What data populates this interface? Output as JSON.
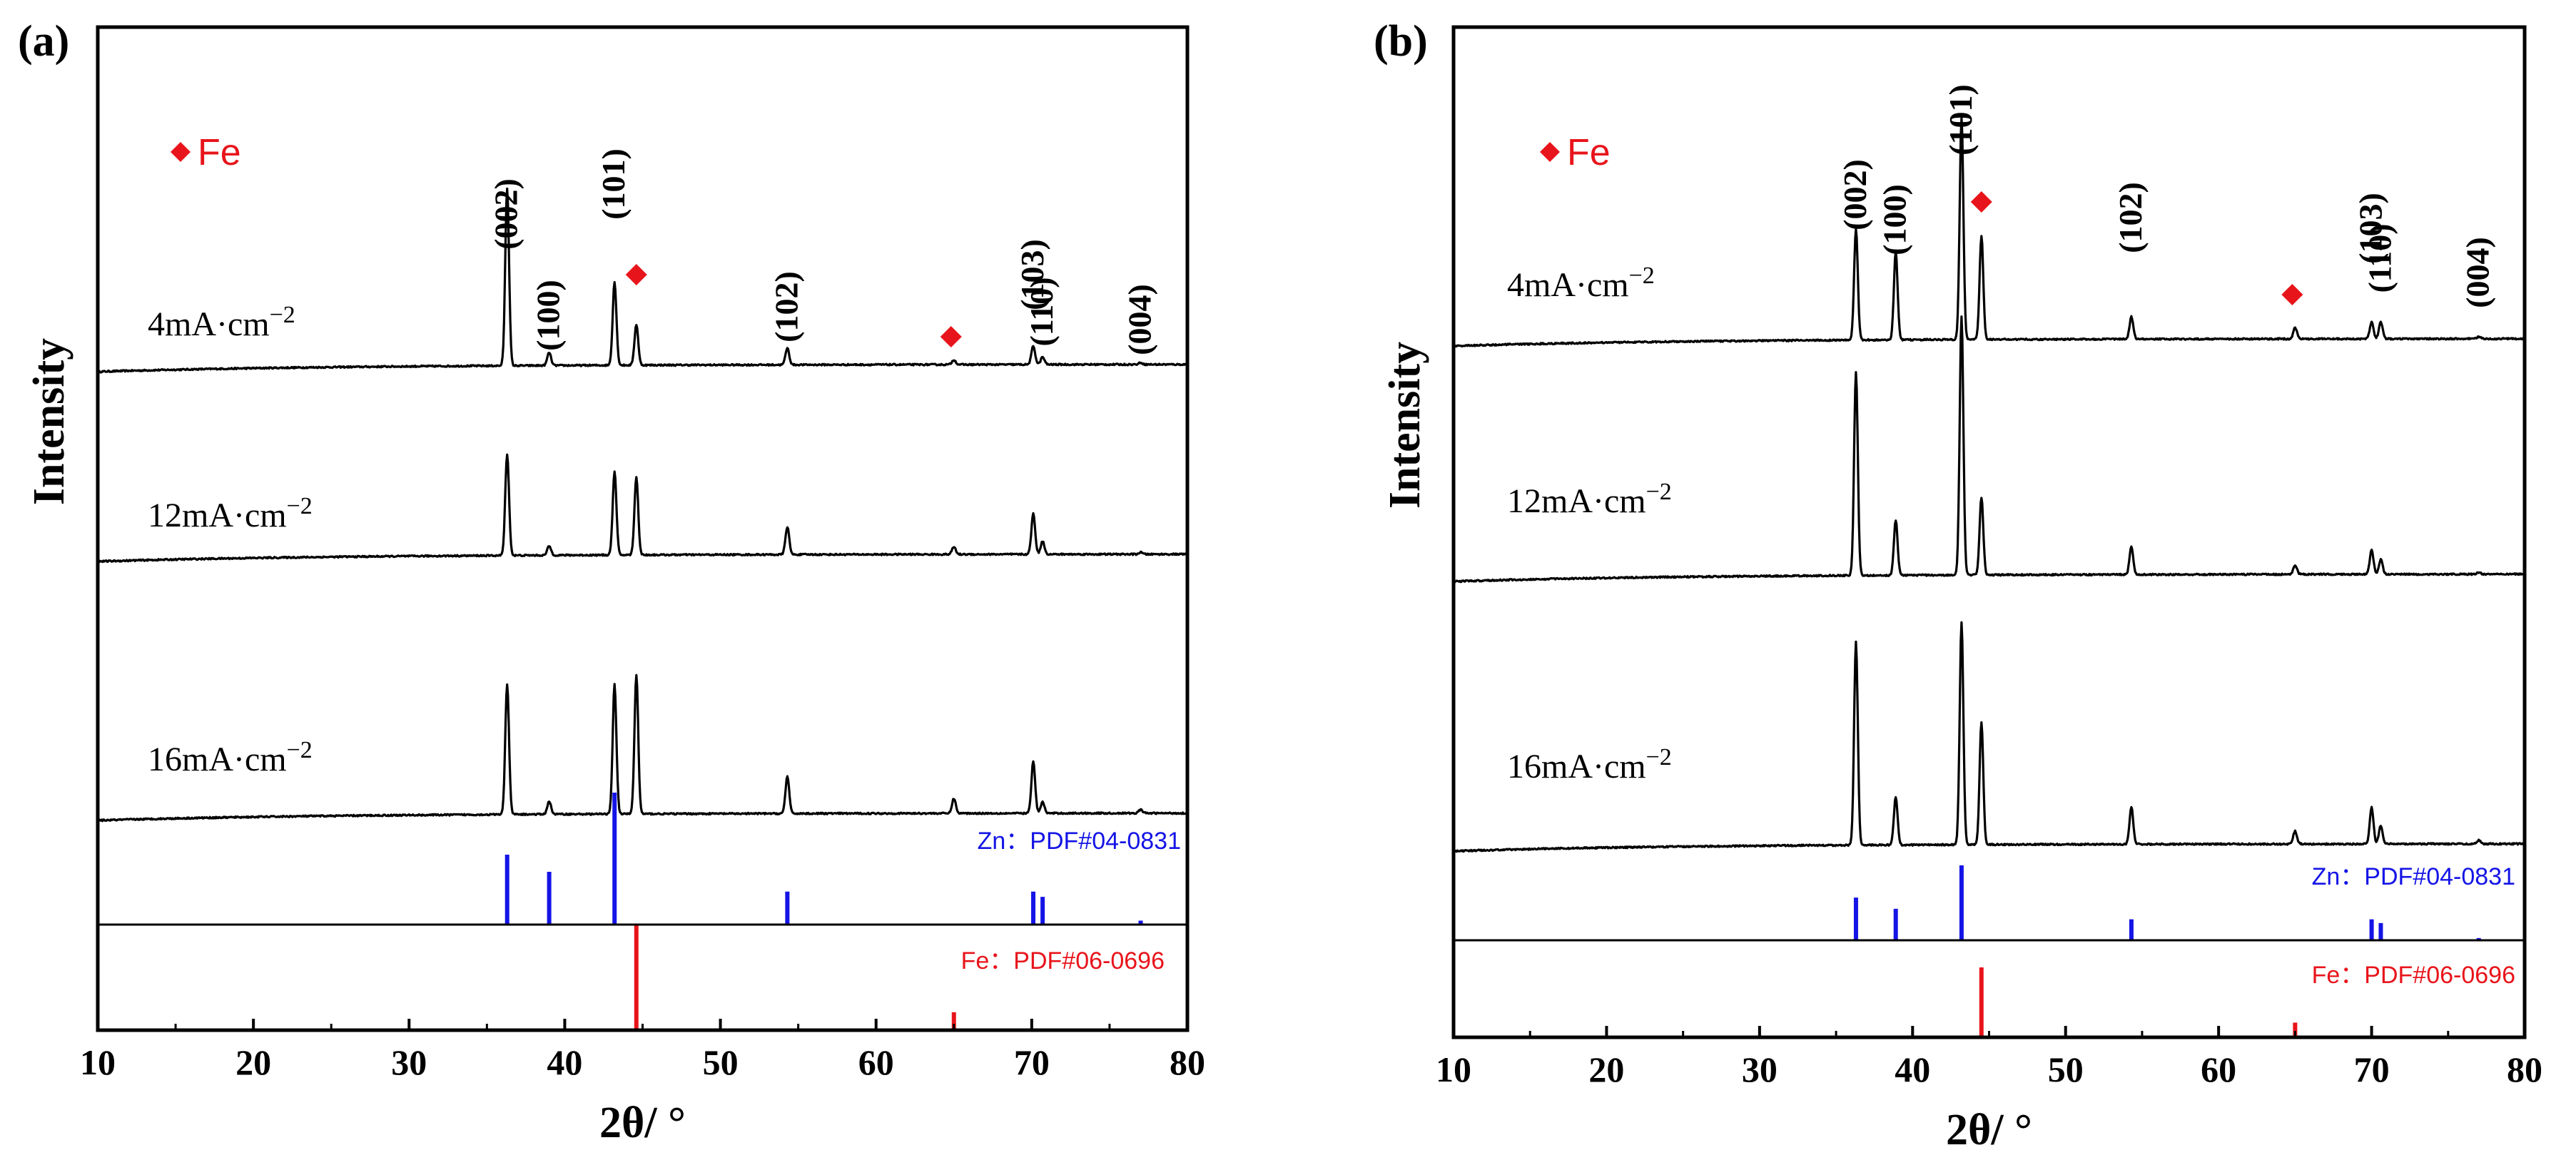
{
  "chart_data": [
    {
      "type": "line",
      "panel_label": "(a)",
      "xlabel": "2θ/ °",
      "ylabel": "Intensity",
      "xlim": [
        10,
        80
      ],
      "x_ticks": [
        10,
        20,
        30,
        40,
        50,
        60,
        70,
        80
      ],
      "legend": [
        {
          "marker": "◆",
          "label": "Fe",
          "color": "#e8141b"
        }
      ],
      "series": [
        {
          "name": "4mA·cm⁻²",
          "label_text": "4mA·cm",
          "label_sup": "−2",
          "color": "#000000",
          "baseline": [
            0.18,
            0.1
          ],
          "noise": 0.004,
          "peaks": [
            {
              "x": 36.3,
              "h": 0.96
            },
            {
              "x": 39.0,
              "h": 0.07
            },
            {
              "x": 43.2,
              "h": 0.45
            },
            {
              "x": 44.6,
              "h": 0.22
            },
            {
              "x": 54.3,
              "h": 0.09
            },
            {
              "x": 65.0,
              "h": 0.025
            },
            {
              "x": 70.1,
              "h": 0.1
            },
            {
              "x": 70.7,
              "h": 0.04
            },
            {
              "x": 77.0,
              "h": 0.01
            }
          ]
        },
        {
          "name": "12mA·cm⁻²",
          "label_text": "12mA·cm",
          "label_sup": "−2",
          "color": "#000000",
          "baseline": [
            0.18,
            0.1
          ],
          "noise": 0.004,
          "peaks": [
            {
              "x": 36.3,
              "h": 0.55
            },
            {
              "x": 39.0,
              "h": 0.05
            },
            {
              "x": 43.2,
              "h": 0.45
            },
            {
              "x": 44.6,
              "h": 0.42
            },
            {
              "x": 54.3,
              "h": 0.15
            },
            {
              "x": 65.0,
              "h": 0.04
            },
            {
              "x": 70.1,
              "h": 0.22
            },
            {
              "x": 70.7,
              "h": 0.07
            },
            {
              "x": 77.0,
              "h": 0.01
            }
          ]
        },
        {
          "name": "16mA·cm⁻²",
          "label_text": "16mA·cm",
          "label_sup": "−2",
          "color": "#000000",
          "baseline": [
            0.18,
            0.1
          ],
          "noise": 0.004,
          "peaks": [
            {
              "x": 36.3,
              "h": 0.7
            },
            {
              "x": 39.0,
              "h": 0.07
            },
            {
              "x": 43.2,
              "h": 0.7
            },
            {
              "x": 44.6,
              "h": 0.75
            },
            {
              "x": 54.3,
              "h": 0.2
            },
            {
              "x": 65.0,
              "h": 0.08
            },
            {
              "x": 70.1,
              "h": 0.28
            },
            {
              "x": 70.7,
              "h": 0.06
            },
            {
              "x": 77.0,
              "h": 0.02
            }
          ]
        }
      ],
      "peak_labels": [
        {
          "label": "(002)",
          "x": 36.3
        },
        {
          "label": "(100)",
          "x": 39.0
        },
        {
          "label": "(101)",
          "x": 43.2
        },
        {
          "label": "(102)",
          "x": 54.3
        },
        {
          "label": "(103)",
          "x": 70.1
        },
        {
          "label": "(110)",
          "x": 70.7
        },
        {
          "label": "(004)",
          "x": 77.0
        }
      ],
      "fe_markers": [
        44.6,
        65.0
      ],
      "reference_patterns": [
        {
          "name": "Zn：PDF#04-0831",
          "color": "#1414e6",
          "lines": [
            {
              "x": 36.3,
              "i": 0.53
            },
            {
              "x": 39.0,
              "i": 0.4
            },
            {
              "x": 43.2,
              "i": 1.0
            },
            {
              "x": 54.3,
              "i": 0.25
            },
            {
              "x": 70.1,
              "i": 0.25
            },
            {
              "x": 70.7,
              "i": 0.21
            },
            {
              "x": 77.0,
              "i": 0.03
            }
          ]
        },
        {
          "name": "Fe：PDF#06-0696",
          "color": "#e8141b",
          "lines": [
            {
              "x": 44.6,
              "i": 1.0
            },
            {
              "x": 65.0,
              "i": 0.17
            }
          ]
        }
      ]
    },
    {
      "type": "line",
      "panel_label": "(b)",
      "xlabel": "2θ/ °",
      "ylabel": "Intensity",
      "xlim": [
        10,
        80
      ],
      "x_ticks": [
        10,
        20,
        30,
        40,
        50,
        60,
        70,
        80
      ],
      "legend": [
        {
          "marker": "◆",
          "label": "Fe",
          "color": "#e8141b"
        }
      ],
      "series": [
        {
          "name": "4mA·cm⁻²",
          "label_text": "4mA·cm",
          "label_sup": "−2",
          "color": "#000000",
          "baseline": [
            0.18,
            0.1
          ],
          "noise": 0.004,
          "peaks": [
            {
              "x": 36.3,
              "h": 0.6
            },
            {
              "x": 38.9,
              "h": 0.48
            },
            {
              "x": 43.2,
              "h": 1.2
            },
            {
              "x": 44.5,
              "h": 0.56
            },
            {
              "x": 54.3,
              "h": 0.12
            },
            {
              "x": 65.0,
              "h": 0.06
            },
            {
              "x": 70.0,
              "h": 0.09
            },
            {
              "x": 70.6,
              "h": 0.09
            },
            {
              "x": 77.0,
              "h": 0.01
            }
          ]
        },
        {
          "name": "12mA·cm⁻²",
          "label_text": "12mA·cm",
          "label_sup": "−2",
          "color": "#000000",
          "baseline": [
            0.18,
            0.1
          ],
          "noise": 0.004,
          "peaks": [
            {
              "x": 36.3,
              "h": 1.1
            },
            {
              "x": 38.9,
              "h": 0.3
            },
            {
              "x": 43.2,
              "h": 1.4
            },
            {
              "x": 44.5,
              "h": 0.42
            },
            {
              "x": 54.3,
              "h": 0.15
            },
            {
              "x": 65.0,
              "h": 0.05
            },
            {
              "x": 70.0,
              "h": 0.13
            },
            {
              "x": 70.6,
              "h": 0.08
            },
            {
              "x": 77.0,
              "h": 0.01
            }
          ]
        },
        {
          "name": "16mA·cm⁻²",
          "label_text": "16mA·cm",
          "label_sup": "−2",
          "color": "#000000",
          "baseline": [
            0.18,
            0.1
          ],
          "noise": 0.004,
          "peaks": [
            {
              "x": 36.3,
              "h": 1.1
            },
            {
              "x": 38.9,
              "h": 0.26
            },
            {
              "x": 43.2,
              "h": 1.2
            },
            {
              "x": 44.5,
              "h": 0.66
            },
            {
              "x": 54.3,
              "h": 0.2
            },
            {
              "x": 65.0,
              "h": 0.07
            },
            {
              "x": 70.0,
              "h": 0.2
            },
            {
              "x": 70.6,
              "h": 0.1
            },
            {
              "x": 77.0,
              "h": 0.02
            }
          ]
        }
      ],
      "peak_labels": [
        {
          "label": "(002)",
          "x": 36.3
        },
        {
          "label": "(100)",
          "x": 38.9
        },
        {
          "label": "(101)",
          "x": 43.2
        },
        {
          "label": "(102)",
          "x": 54.3
        },
        {
          "label": "(103)",
          "x": 70.0
        },
        {
          "label": "(110)",
          "x": 70.6
        },
        {
          "label": "(004)",
          "x": 77.0
        }
      ],
      "fe_markers": [
        44.5,
        65.0
      ],
      "reference_patterns": [
        {
          "name": "Zn：PDF#04-0831",
          "color": "#1414e6",
          "lines": [
            {
              "x": 36.3,
              "i": 0.57
            },
            {
              "x": 38.9,
              "i": 0.42
            },
            {
              "x": 43.2,
              "i": 1.0
            },
            {
              "x": 54.3,
              "i": 0.28
            },
            {
              "x": 70.0,
              "i": 0.28
            },
            {
              "x": 70.6,
              "i": 0.23
            },
            {
              "x": 77.0,
              "i": 0.03
            }
          ]
        },
        {
          "name": "Fe：PDF#06-0696",
          "color": "#e8141b",
          "lines": [
            {
              "x": 44.5,
              "i": 1.0
            },
            {
              "x": 65.0,
              "i": 0.21
            }
          ]
        }
      ]
    }
  ]
}
